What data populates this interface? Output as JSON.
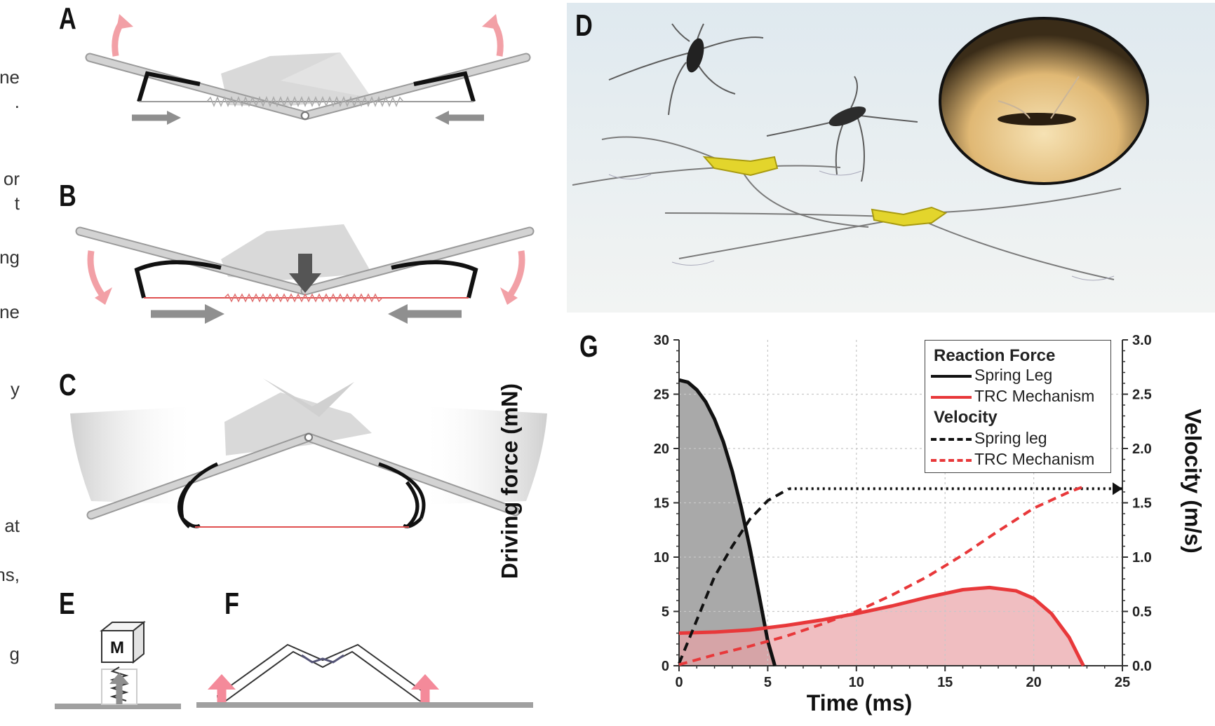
{
  "panel_labels": {
    "a": "A",
    "b": "B",
    "c": "C",
    "d": "D",
    "e": "E",
    "f": "F",
    "g": "G"
  },
  "edge_text": [
    "ne",
    ".",
    "or",
    "t",
    "ng",
    "ne",
    "y",
    "at",
    "ns,",
    "g"
  ],
  "panel_e": {
    "mass_label": "M"
  },
  "colors": {
    "spring_leg": "#111111",
    "trc": "#e8383a",
    "trc_fill": "#e9a3a6",
    "spring_fill": "#8c8c8c",
    "arrow_pink": "#f2a0a6",
    "arrow_gray": "#8f8f8f"
  },
  "chart_data": {
    "type": "line",
    "xlabel": "Time (ms)",
    "ylabel": "Driving force (mN)",
    "ylabel_right": "Velocity (m/s)",
    "xlim": [
      0,
      25
    ],
    "ylim": [
      0,
      30
    ],
    "ylim_right": [
      0,
      3.0
    ],
    "x_ticks": [
      "0",
      "5",
      "10",
      "15",
      "20",
      "25"
    ],
    "y_ticks": [
      "0",
      "5",
      "10",
      "15",
      "20",
      "25",
      "30"
    ],
    "y_ticks_right": [
      "0.0",
      "0.5",
      "1.0",
      "1.5",
      "2.0",
      "2.5",
      "3.0"
    ],
    "grid": true,
    "legend": {
      "placement": "top-right",
      "force_header": "Reaction Force",
      "velocity_header": "Velocity",
      "entries": [
        {
          "label": "Spring Leg",
          "style": "solid",
          "color": "#111111"
        },
        {
          "label": "TRC Mechanism",
          "style": "solid",
          "color": "#e8383a"
        },
        {
          "label": "Spring leg",
          "style": "dashed",
          "color": "#111111"
        },
        {
          "label": "TRC Mechanism",
          "style": "dashed",
          "color": "#e8383a"
        }
      ]
    },
    "series": [
      {
        "name": "Spring Leg",
        "axis": "left",
        "style": "solid",
        "x": [
          0,
          0.5,
          1,
          1.5,
          2,
          2.5,
          3,
          3.5,
          4,
          4.5,
          5,
          5.4
        ],
        "y": [
          26.3,
          26.1,
          25.4,
          24.3,
          22.7,
          20.6,
          17.9,
          14.6,
          10.8,
          6.6,
          2.3,
          0
        ]
      },
      {
        "name": "TRC Mechanism",
        "axis": "left",
        "style": "solid",
        "x": [
          0,
          2,
          4,
          6,
          8,
          10,
          12,
          14,
          16,
          17.5,
          19,
          20,
          21,
          22,
          22.8
        ],
        "y": [
          3.0,
          3.1,
          3.3,
          3.7,
          4.2,
          4.8,
          5.5,
          6.3,
          7.0,
          7.2,
          6.9,
          6.2,
          4.8,
          2.6,
          0
        ]
      },
      {
        "name": "Spring leg",
        "axis": "right",
        "style": "dashed",
        "x": [
          0,
          0.5,
          1,
          1.5,
          2,
          3,
          4,
          5,
          6.2
        ],
        "y": [
          0.02,
          0.22,
          0.42,
          0.62,
          0.82,
          1.1,
          1.35,
          1.52,
          1.63
        ]
      },
      {
        "name": "Spring leg (terminal)",
        "axis": "right",
        "style": "dotted",
        "x": [
          6.2,
          25
        ],
        "y": [
          1.63,
          1.63
        ]
      },
      {
        "name": "TRC Mechanism",
        "axis": "right",
        "style": "dashed",
        "x": [
          0,
          2,
          4,
          6,
          8,
          10,
          12,
          14,
          16,
          18,
          20,
          22,
          23
        ],
        "y": [
          0.01,
          0.1,
          0.18,
          0.27,
          0.38,
          0.5,
          0.65,
          0.82,
          1.02,
          1.24,
          1.45,
          1.6,
          1.66
        ]
      }
    ]
  }
}
